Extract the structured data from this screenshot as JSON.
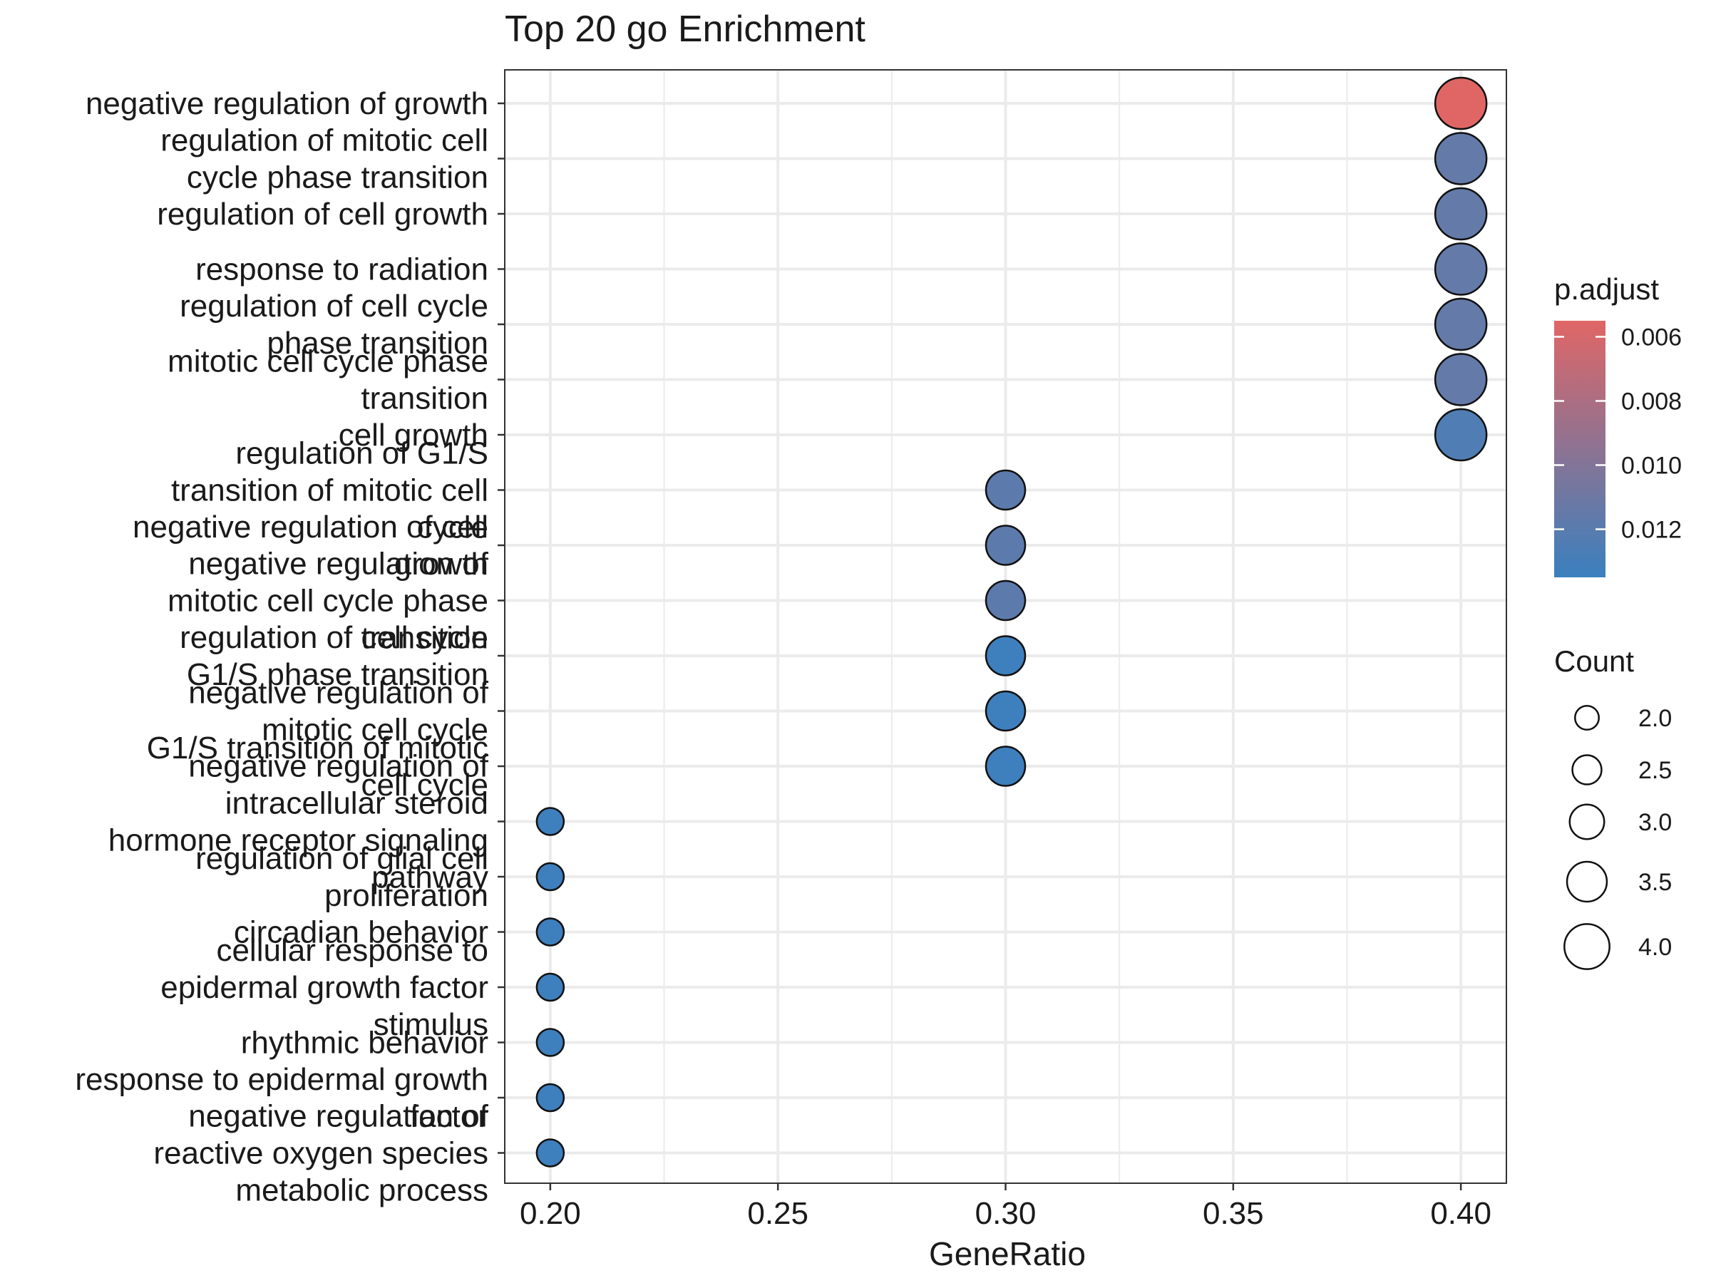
{
  "chart_data": {
    "type": "scatter",
    "title": "Top 20 go Enrichment",
    "xlabel": "GeneRatio",
    "ylabel": "",
    "xlim": [
      0.19,
      0.41
    ],
    "x_ticks": [
      "0.20",
      "0.25",
      "0.30",
      "0.35",
      "0.40"
    ],
    "grid": true,
    "legend_position": "right",
    "terms": [
      {
        "label": [
          "negative regulation of growth"
        ],
        "x": 0.4,
        "count": 4,
        "p_adjust": 0.0055
      },
      {
        "label": [
          "regulation of mitotic cell",
          "cycle phase transition"
        ],
        "x": 0.4,
        "count": 4,
        "p_adjust": 0.0115
      },
      {
        "label": [
          "regulation of cell growth"
        ],
        "x": 0.4,
        "count": 4,
        "p_adjust": 0.0115
      },
      {
        "label": [
          "response to radiation"
        ],
        "x": 0.4,
        "count": 4,
        "p_adjust": 0.0115
      },
      {
        "label": [
          "regulation of cell cycle",
          "phase transition"
        ],
        "x": 0.4,
        "count": 4,
        "p_adjust": 0.0115
      },
      {
        "label": [
          "mitotic cell cycle phase",
          "transition"
        ],
        "x": 0.4,
        "count": 4,
        "p_adjust": 0.0115
      },
      {
        "label": [
          "cell growth"
        ],
        "x": 0.4,
        "count": 4,
        "p_adjust": 0.0125
      },
      {
        "label": [
          "regulation of G1/S",
          "transition of mitotic cell",
          "cycle"
        ],
        "x": 0.3,
        "count": 3,
        "p_adjust": 0.0118
      },
      {
        "label": [
          "negative regulation of cell",
          "growth"
        ],
        "x": 0.3,
        "count": 3,
        "p_adjust": 0.0118
      },
      {
        "label": [
          "negative regulation of",
          "mitotic cell cycle phase",
          "transition"
        ],
        "x": 0.3,
        "count": 3,
        "p_adjust": 0.0118
      },
      {
        "label": [
          "regulation of cell cycle",
          "G1/S phase transition"
        ],
        "x": 0.3,
        "count": 3,
        "p_adjust": 0.0133
      },
      {
        "label": [
          "negative regulation of",
          "mitotic cell cycle"
        ],
        "x": 0.3,
        "count": 3,
        "p_adjust": 0.0133
      },
      {
        "label": [
          "G1/S transition of mitotic",
          "cell cycle"
        ],
        "x": 0.3,
        "count": 3,
        "p_adjust": 0.0133
      },
      {
        "label": [
          "negative regulation of",
          "intracellular steroid",
          "hormone receptor signaling",
          "pathway"
        ],
        "x": 0.2,
        "count": 2,
        "p_adjust": 0.0133
      },
      {
        "label": [
          "regulation of glial cell",
          "proliferation"
        ],
        "x": 0.2,
        "count": 2,
        "p_adjust": 0.0133
      },
      {
        "label": [
          "circadian behavior"
        ],
        "x": 0.2,
        "count": 2,
        "p_adjust": 0.0133
      },
      {
        "label": [
          "cellular response to",
          "epidermal growth factor",
          "stimulus"
        ],
        "x": 0.2,
        "count": 2,
        "p_adjust": 0.0133
      },
      {
        "label": [
          "rhythmic behavior"
        ],
        "x": 0.2,
        "count": 2,
        "p_adjust": 0.0133
      },
      {
        "label": [
          "response to epidermal growth",
          "factor"
        ],
        "x": 0.2,
        "count": 2,
        "p_adjust": 0.0133
      },
      {
        "label": [
          "negative regulation of",
          "reactive oxygen species",
          "metabolic process"
        ],
        "x": 0.2,
        "count": 2,
        "p_adjust": 0.0133
      }
    ],
    "color_legend": {
      "title": "p.adjust",
      "range": [
        0.0055,
        0.0135
      ],
      "ticks": [
        "0.006",
        "0.008",
        "0.010",
        "0.012"
      ],
      "low_color": "#e06666",
      "high_color": "#3a80bf"
    },
    "size_legend": {
      "title": "Count",
      "values": [
        2.0,
        2.5,
        3.0,
        3.5,
        4.0
      ],
      "labels": [
        "2.0",
        "2.5",
        "3.0",
        "3.5",
        "4.0"
      ]
    },
    "colors": {
      "grid": "#ebebeb",
      "panel_border": "#333333",
      "point_stroke": "#111111"
    }
  }
}
